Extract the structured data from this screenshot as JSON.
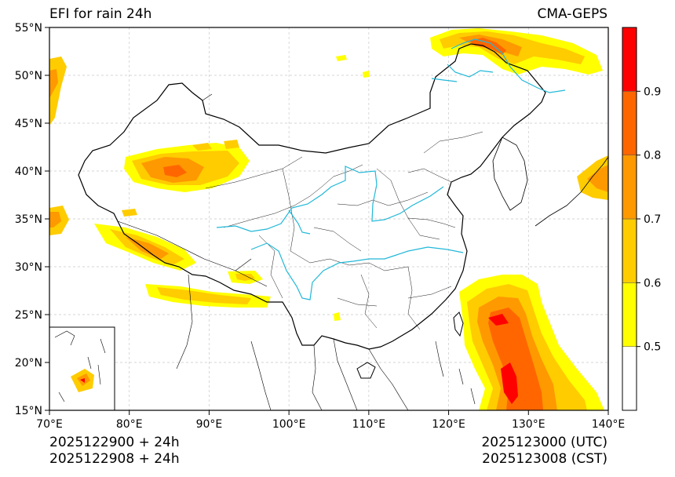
{
  "title_left": "EFI for rain 24h",
  "title_right": "CMA-GEPS",
  "footer": {
    "init_utc": "2025122900 + 24h",
    "init_cst": "2025122908 + 24h",
    "valid_utc": "2025123000 (UTC)",
    "valid_cst": "2025123008 (CST)"
  },
  "map_extent": {
    "lon": [
      70,
      140
    ],
    "lat": [
      15,
      55
    ]
  },
  "lat_ticks": [
    {
      "value": 55,
      "label": "55°N"
    },
    {
      "value": 50,
      "label": "50°N"
    },
    {
      "value": 45,
      "label": "45°N"
    },
    {
      "value": 40,
      "label": "40°N"
    },
    {
      "value": 35,
      "label": "35°N"
    },
    {
      "value": 30,
      "label": "30°N"
    },
    {
      "value": 25,
      "label": "25°N"
    },
    {
      "value": 20,
      "label": "20°N"
    },
    {
      "value": 15,
      "label": "15°N"
    }
  ],
  "lon_ticks": [
    {
      "value": 70,
      "label": "70°E"
    },
    {
      "value": 80,
      "label": "80°E"
    },
    {
      "value": 90,
      "label": "90°E"
    },
    {
      "value": 100,
      "label": "100°E"
    },
    {
      "value": 110,
      "label": "110°E"
    },
    {
      "value": 120,
      "label": "120°E"
    },
    {
      "value": 130,
      "label": "130°E"
    },
    {
      "value": 140,
      "label": "140°E"
    }
  ],
  "colorbar": {
    "levels": [
      {
        "from": 0.4,
        "to": 0.5,
        "color": "#ffffff"
      },
      {
        "from": 0.5,
        "to": 0.6,
        "color": "#ffff00"
      },
      {
        "from": 0.6,
        "to": 0.7,
        "color": "#ffcc00"
      },
      {
        "from": 0.7,
        "to": 0.8,
        "color": "#ff9900"
      },
      {
        "from": 0.8,
        "to": 0.9,
        "color": "#ff6600"
      },
      {
        "from": 0.9,
        "to": 1.0,
        "color": "#ff0000"
      }
    ],
    "tick_labels": [
      {
        "value": 0.5,
        "label": "0.5"
      },
      {
        "value": 0.6,
        "label": "0.6"
      },
      {
        "value": 0.7,
        "label": "0.7"
      },
      {
        "value": 0.8,
        "label": "0.8"
      },
      {
        "value": 0.9,
        "label": "0.9"
      }
    ]
  },
  "colors": {
    "rivers": "#22b8d8",
    "boundary": "#000000",
    "grid": "#c8c8c8"
  }
}
